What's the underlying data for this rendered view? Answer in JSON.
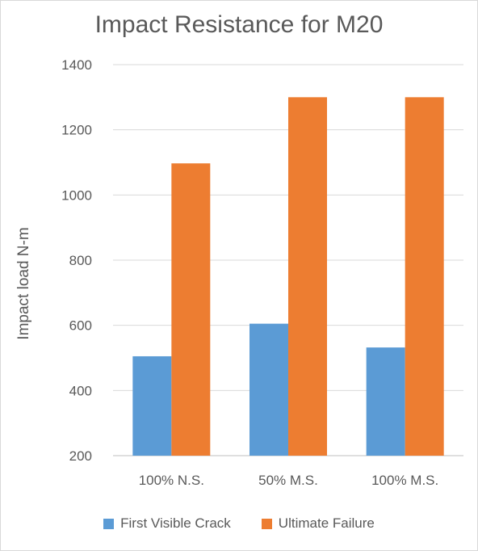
{
  "chart_data": {
    "type": "bar",
    "title": "Impact Resistance for M20",
    "xlabel": "",
    "ylabel": "Impact load N-m",
    "categories": [
      "100% N.S.",
      "50% M.S.",
      "100% M.S."
    ],
    "series": [
      {
        "name": "First Visible Crack",
        "color": "#5b9bd5",
        "values": [
          505,
          605,
          532
        ]
      },
      {
        "name": "Ultimate Failure",
        "color": "#ed7d31",
        "values": [
          1097,
          1300,
          1300
        ]
      }
    ],
    "ylim": [
      200,
      1400
    ],
    "yticks": [
      200,
      400,
      600,
      800,
      1000,
      1200,
      1400
    ],
    "grid": true,
    "legend_position": "bottom"
  }
}
